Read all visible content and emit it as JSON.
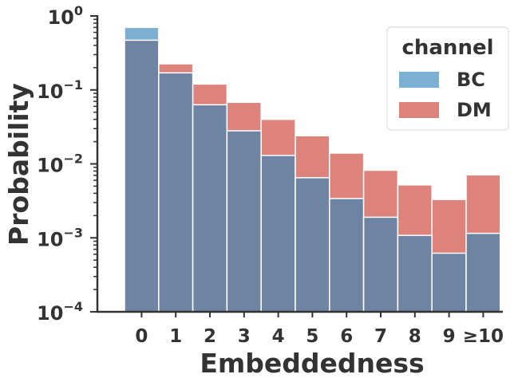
{
  "chart_data": {
    "type": "bar",
    "xlabel": "Embeddedness",
    "ylabel": "Probability",
    "y_scale": "log",
    "ylim": [
      0.0001,
      1
    ],
    "categories": [
      "0",
      "1",
      "2",
      "3",
      "4",
      "5",
      "6",
      "7",
      "8",
      "9",
      "≥10"
    ],
    "y_ticks": [
      {
        "base": "10",
        "exp": "0"
      },
      {
        "base": "10",
        "exp": "−1"
      },
      {
        "base": "10",
        "exp": "−2"
      },
      {
        "base": "10",
        "exp": "−3"
      },
      {
        "base": "10",
        "exp": "−4"
      }
    ],
    "series": [
      {
        "name": "BC",
        "color": "#7bafd4",
        "values": [
          0.7,
          0.17,
          0.063,
          0.028,
          0.013,
          0.0065,
          0.0034,
          0.0019,
          0.00108,
          0.00062,
          0.00115
        ]
      },
      {
        "name": "DM",
        "color": "#dd837b",
        "values": [
          0.47,
          0.225,
          0.12,
          0.068,
          0.04,
          0.024,
          0.014,
          0.0082,
          0.0052,
          0.0033,
          0.0071
        ]
      }
    ],
    "overlap_color": "#6f84a3",
    "legend": {
      "title": "channel",
      "position": "top-right"
    },
    "grid": false
  }
}
